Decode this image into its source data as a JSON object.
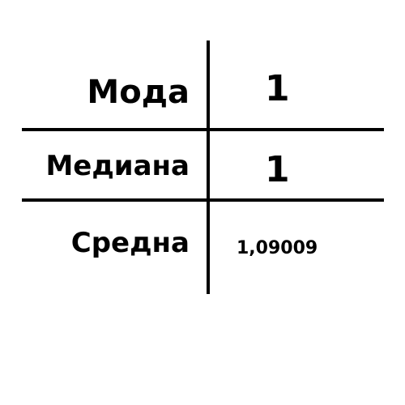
{
  "rows": [
    {
      "label": "Мода",
      "value": "1"
    },
    {
      "label": "Медиана",
      "value": "1"
    },
    {
      "label": "Средна",
      "value": "1,09009"
    }
  ],
  "colors": {
    "background": "#ffffff",
    "text": "#000000",
    "lines": "#000000"
  }
}
